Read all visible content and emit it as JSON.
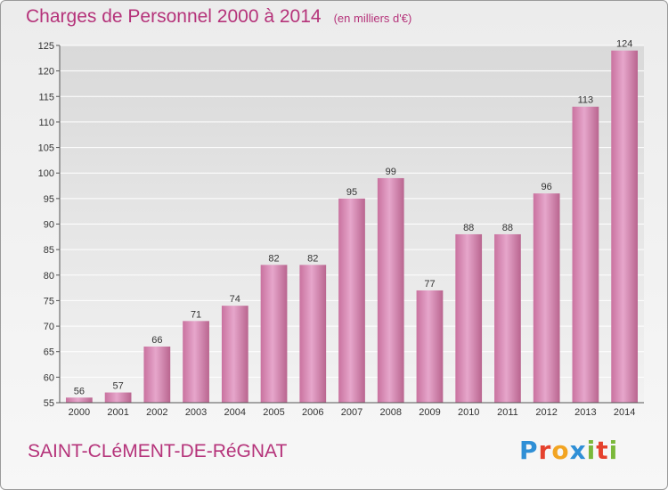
{
  "header": {
    "title": "Charges de Personnel 2000 à 2014",
    "unit": "(en milliers d'€)"
  },
  "footer": {
    "town": "SAINT-CLéMENT-DE-RéGNAT",
    "logo_letters": [
      "P",
      "r",
      "o",
      "x",
      "i",
      "t",
      "i"
    ],
    "logo_colors": [
      "#2f8fd6",
      "#e5412d",
      "#f2a422",
      "#2f8fd6",
      "#7ab83a",
      "#e5412d",
      "#7ab83a"
    ]
  },
  "chart_data": {
    "type": "bar",
    "categories": [
      "2000",
      "2001",
      "2002",
      "2003",
      "2004",
      "2005",
      "2006",
      "2007",
      "2008",
      "2009",
      "2010",
      "2011",
      "2012",
      "2013",
      "2014"
    ],
    "values": [
      56,
      57,
      66,
      71,
      74,
      82,
      82,
      95,
      99,
      77,
      88,
      88,
      96,
      113,
      124
    ],
    "ylim": [
      55,
      125
    ],
    "yticks": [
      55,
      60,
      65,
      70,
      75,
      80,
      85,
      90,
      95,
      100,
      105,
      110,
      115,
      120,
      125
    ],
    "grid": true,
    "bar_color": "#d68ab8"
  }
}
